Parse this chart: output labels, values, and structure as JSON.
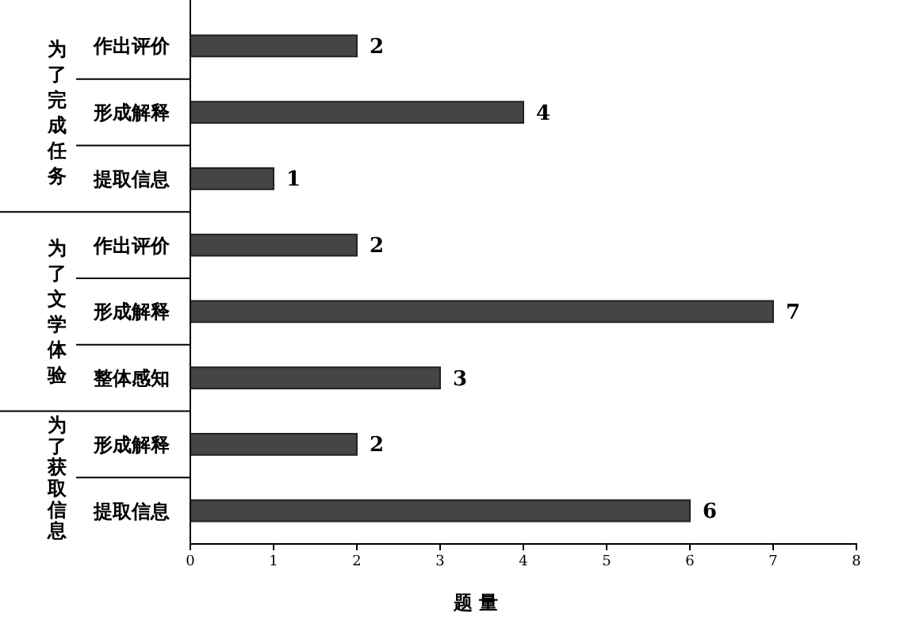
{
  "chart_data": {
    "type": "bar",
    "orientation": "horizontal",
    "categories": [
      "作出评价",
      "形成解释",
      "提取信息",
      "作出评价",
      "形成解释",
      "整体感知",
      "形成解释",
      "提取信息"
    ],
    "values": [
      2,
      4,
      1,
      2,
      7,
      3,
      2,
      6
    ],
    "color": "#454545",
    "xlim": [
      0,
      8
    ],
    "xticks": [
      0,
      1,
      2,
      3,
      4,
      5,
      6,
      7,
      8
    ],
    "xlabel": "题 量",
    "annotations": [
      "为了完成任务",
      "为了文学体验",
      "为了获取信息"
    ],
    "data_labels": true,
    "grid": false
  }
}
